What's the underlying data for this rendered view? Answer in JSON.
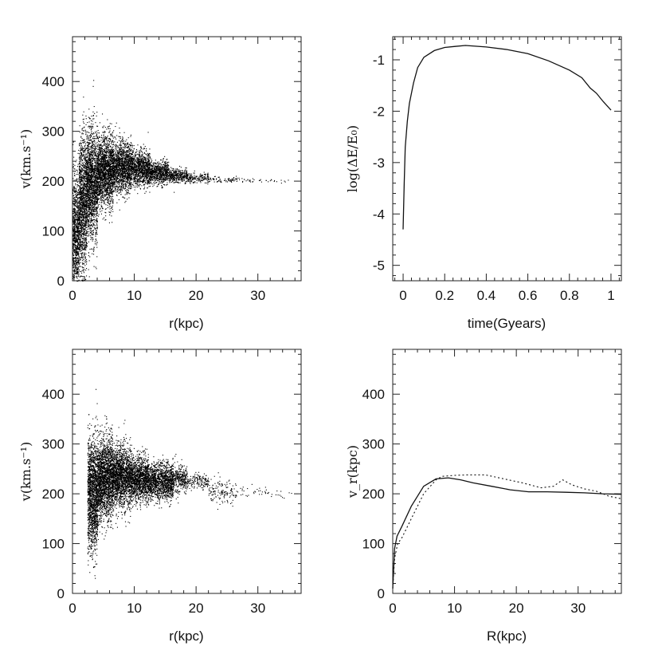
{
  "chart_data": [
    {
      "type": "scatter",
      "panel": "top-left",
      "xlabel": "r(kpc)",
      "ylabel": "v(km.s⁻¹)",
      "xlim": [
        0,
        37
      ],
      "ylim": [
        0,
        400
      ],
      "xticks": [
        0,
        10,
        20,
        30
      ],
      "yticks": [
        0,
        100,
        200,
        300,
        400
      ],
      "series": [
        {
          "density_profile": [
            {
              "r": 0.5,
              "v_mean": 90,
              "v_spread": 60,
              "n": 900
            },
            {
              "r": 1.5,
              "v_mean": 150,
              "v_spread": 70,
              "n": 1300
            },
            {
              "r": 3,
              "v_mean": 195,
              "v_spread": 55,
              "n": 1600
            },
            {
              "r": 5,
              "v_mean": 220,
              "v_spread": 35,
              "n": 1700
            },
            {
              "r": 8,
              "v_mean": 228,
              "v_spread": 25,
              "n": 1400
            },
            {
              "r": 11,
              "v_mean": 226,
              "v_spread": 17,
              "n": 1000
            },
            {
              "r": 14,
              "v_mean": 218,
              "v_spread": 11,
              "n": 650
            },
            {
              "r": 17,
              "v_mean": 212,
              "v_spread": 7,
              "n": 360
            },
            {
              "r": 20,
              "v_mean": 207,
              "v_spread": 5,
              "n": 180
            },
            {
              "r": 24,
              "v_mean": 204,
              "v_spread": 3,
              "n": 70
            },
            {
              "r": 30,
              "v_mean": 202,
              "v_spread": 2,
              "n": 25
            },
            {
              "r": 34,
              "v_mean": 201,
              "v_spread": 2,
              "n": 10
            }
          ]
        }
      ]
    },
    {
      "type": "line",
      "panel": "top-right",
      "xlabel": "time(Gyears)",
      "ylabel": "log(ΔE/E₀)",
      "xlim": [
        -0.05,
        1.05
      ],
      "ylim": [
        -5.3,
        -0.55
      ],
      "xticks": [
        0,
        0.2,
        0.4,
        0.6,
        0.8,
        1
      ],
      "xticklabels": [
        "0",
        "0.2",
        "0.4",
        "0.6",
        "0.8",
        "1"
      ],
      "yticks": [
        -5,
        -4,
        -3,
        -2,
        -1
      ],
      "series": [
        {
          "style": "solid",
          "x": [
            0.0,
            0.005,
            0.01,
            0.02,
            0.03,
            0.05,
            0.07,
            0.1,
            0.15,
            0.2,
            0.25,
            0.3,
            0.4,
            0.5,
            0.6,
            0.7,
            0.8,
            0.86,
            0.9,
            0.93,
            0.96,
            1.0
          ],
          "y": [
            -4.3,
            -3.4,
            -2.7,
            -2.2,
            -1.85,
            -1.45,
            -1.15,
            -0.95,
            -0.82,
            -0.76,
            -0.74,
            -0.72,
            -0.75,
            -0.8,
            -0.88,
            -1.02,
            -1.2,
            -1.35,
            -1.55,
            -1.65,
            -1.8,
            -1.98
          ]
        }
      ]
    },
    {
      "type": "scatter",
      "panel": "bottom-left",
      "xlabel": "r(kpc)",
      "ylabel": "v(km.s⁻¹)",
      "xlim": [
        0,
        37
      ],
      "ylim": [
        0,
        400
      ],
      "xticks": [
        0,
        10,
        20,
        30
      ],
      "yticks": [
        0,
        100,
        200,
        300,
        400
      ],
      "series": [
        {
          "density_profile": [
            {
              "r": 3,
              "v_mean": 200,
              "v_spread": 55,
              "n": 1500
            },
            {
              "r": 5,
              "v_mean": 230,
              "v_spread": 40,
              "n": 1900
            },
            {
              "r": 8,
              "v_mean": 235,
              "v_spread": 30,
              "n": 1700
            },
            {
              "r": 11,
              "v_mean": 230,
              "v_spread": 22,
              "n": 1200
            },
            {
              "r": 13.5,
              "v_mean": 225,
              "v_spread": 18,
              "n": 700
            },
            {
              "r": 15.5,
              "v_mean": 225,
              "v_spread": 18,
              "n": 600
            },
            {
              "r": 17,
              "v_mean": 230,
              "v_spread": 14,
              "n": 300
            },
            {
              "r": 20,
              "v_mean": 225,
              "v_spread": 8,
              "n": 150
            },
            {
              "r": 24,
              "v_mean": 205,
              "v_spread": 12,
              "n": 140
            },
            {
              "r": 29,
              "v_mean": 205,
              "v_spread": 6,
              "n": 30
            },
            {
              "r": 34,
              "v_mean": 200,
              "v_spread": 4,
              "n": 15
            }
          ]
        }
      ]
    },
    {
      "type": "line",
      "panel": "bottom-right",
      "xlabel": "R(kpc)",
      "ylabel": "v_r(kpc)",
      "xlim": [
        0,
        37
      ],
      "ylim": [
        0,
        400
      ],
      "xticks": [
        0,
        10,
        20,
        30
      ],
      "yticks": [
        0,
        100,
        200,
        300,
        400
      ],
      "series": [
        {
          "style": "solid",
          "x": [
            0,
            0.3,
            0.7,
            1.5,
            3,
            5,
            7,
            9,
            11,
            13,
            16,
            19,
            22,
            25,
            28,
            31,
            34,
            37
          ],
          "y": [
            10,
            90,
            115,
            135,
            175,
            215,
            230,
            232,
            228,
            222,
            215,
            208,
            204,
            204,
            203,
            202,
            200,
            199
          ]
        },
        {
          "style": "dotted",
          "x": [
            0,
            0.3,
            0.8,
            1.5,
            3,
            5,
            7,
            8,
            10,
            12,
            15,
            18,
            21,
            24,
            26,
            27.5,
            29,
            31,
            33,
            35,
            37
          ],
          "y": [
            10,
            70,
            100,
            112,
            150,
            200,
            228,
            235,
            237,
            238,
            238,
            230,
            222,
            212,
            215,
            228,
            218,
            210,
            205,
            195,
            190
          ]
        }
      ]
    }
  ]
}
